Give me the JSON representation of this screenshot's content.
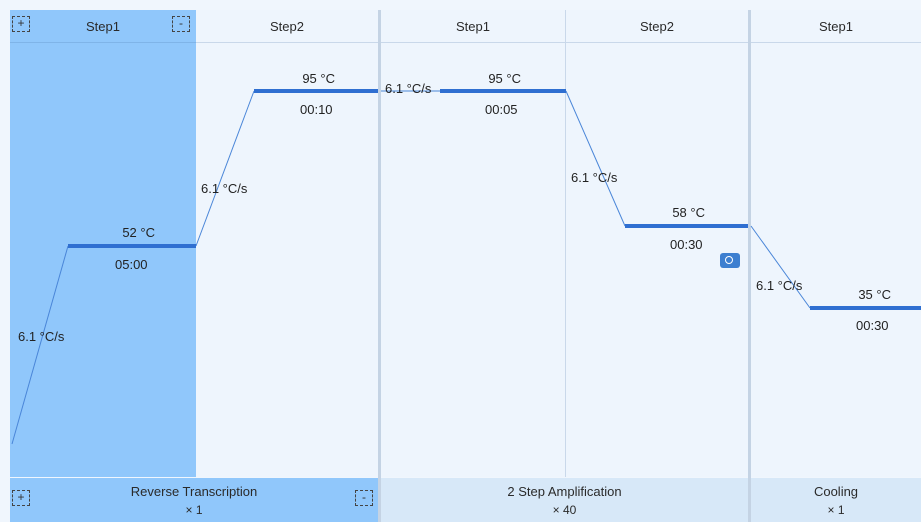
{
  "stages": [
    {
      "name": "Reverse Transcription",
      "repeat": "× 1"
    },
    {
      "name": "2 Step Amplification",
      "repeat": "× 40"
    },
    {
      "name": "Cooling",
      "repeat": "× 1"
    }
  ],
  "steps": [
    {
      "header": "Step1",
      "temp": "52 °C",
      "time": "05:00",
      "rate": "6.1 °C/s"
    },
    {
      "header": "Step2",
      "temp": "95 °C",
      "time": "00:10",
      "rate": "6.1 °C/s"
    },
    {
      "header": "Step1",
      "temp": "95 °C",
      "time": "00:05",
      "rate": "6.1 °C/s"
    },
    {
      "header": "Step2",
      "temp": "58 °C",
      "time": "00:30",
      "rate": "6.1 °C/s"
    },
    {
      "header": "Step1",
      "temp": "35 °C",
      "time": "00:30",
      "rate": "6.1 °C/s"
    }
  ],
  "icons": {
    "add": "+",
    "remove": "-"
  },
  "colors": {
    "selected": "#90c7fb",
    "line": "#2f6fd1"
  }
}
